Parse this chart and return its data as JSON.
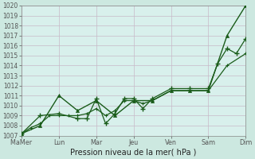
{
  "xlabel": "Pression niveau de la mer( hPa )",
  "bg_color": "#cce8e0",
  "plot_bg": "#d8f0ec",
  "grid_color": "#c8b8c8",
  "line_color": "#1a5c1a",
  "ylim": [
    1007,
    1020
  ],
  "yticks": [
    1007,
    1008,
    1009,
    1010,
    1011,
    1012,
    1013,
    1014,
    1015,
    1016,
    1017,
    1018,
    1019,
    1020
  ],
  "x_labels": [
    "Ma​Mer",
    "Lun",
    "Mar",
    "Jeu",
    "Ven",
    "Sam",
    "Dim"
  ],
  "x_positions": [
    0,
    2,
    4,
    6,
    8,
    10,
    12
  ],
  "line1_x": [
    0,
    1,
    2,
    3,
    4,
    5,
    6,
    7,
    8,
    9,
    10,
    11,
    12
  ],
  "line1_y": [
    1007.2,
    1008.0,
    1011.0,
    1009.5,
    1010.5,
    1009.0,
    1010.5,
    1010.5,
    1011.5,
    1011.5,
    1011.5,
    1017.0,
    1020.0
  ],
  "line2_x": [
    0,
    1,
    2,
    3,
    3.5,
    4,
    4.5,
    5,
    5.5,
    6,
    6.5,
    7,
    8,
    9,
    10,
    10.5,
    11,
    11.5,
    12
  ],
  "line2_y": [
    1007.2,
    1009.0,
    1009.2,
    1008.7,
    1008.7,
    1010.7,
    1008.2,
    1009.2,
    1010.7,
    1010.7,
    1009.7,
    1010.7,
    1011.7,
    1011.7,
    1011.7,
    1014.2,
    1015.7,
    1015.2,
    1016.7
  ],
  "line3_x": [
    0,
    0.5,
    1.0,
    1.5,
    2,
    2.5,
    3,
    3.5,
    4,
    4.5,
    5,
    5.5,
    6,
    6.5,
    7,
    8,
    9,
    10,
    11,
    12
  ],
  "line3_y": [
    1007.2,
    1007.8,
    1008.2,
    1009.0,
    1009.0,
    1009.0,
    1009.0,
    1009.2,
    1009.7,
    1009.0,
    1009.5,
    1010.5,
    1010.5,
    1010.2,
    1010.5,
    1011.5,
    1011.5,
    1011.5,
    1014.0,
    1015.2
  ]
}
